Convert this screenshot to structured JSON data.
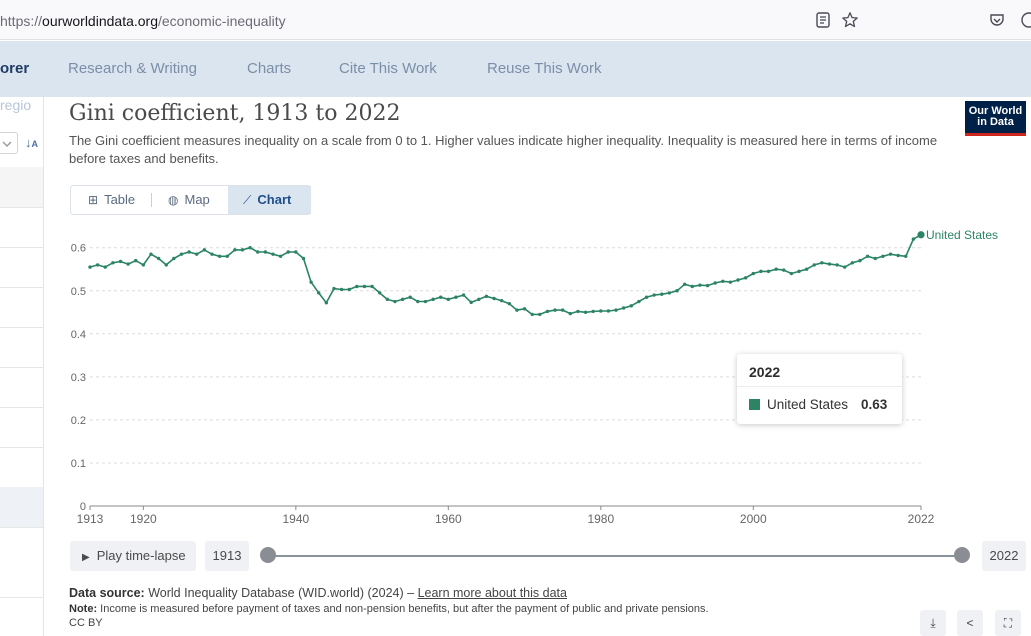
{
  "browser": {
    "url_prefix": "https://",
    "url_domain": "ourworldindata.org",
    "url_path": "/economic-inequality"
  },
  "nav": {
    "cut_left": "orer",
    "items": [
      "Research & Writing",
      "Charts",
      "Cite This Work",
      "Reuse This Work"
    ]
  },
  "left_panel": {
    "search_fragment": "regio"
  },
  "chart_header": {
    "title": "Gini coefficient, 1913 to 2022",
    "subtitle": "The Gini coefficient measures inequality on a scale from 0 to 1. Higher values indicate higher inequality. Inequality is measured here in terms of income before taxes and benefits.",
    "logo_line1": "Our World",
    "logo_line2": "in Data"
  },
  "tabs": [
    {
      "label": "Table",
      "icon": "table-icon",
      "active": false
    },
    {
      "label": "Map",
      "icon": "globe-icon",
      "active": false
    },
    {
      "label": "Chart",
      "icon": "line-chart-icon",
      "active": true
    }
  ],
  "colors": {
    "series": "#2c8465",
    "accent": "#dbe5f0",
    "logo_bg": "#002147",
    "logo_red": "#ce261e"
  },
  "chart_data": {
    "type": "line",
    "title": "Gini coefficient, 1913 to 2022",
    "xlabel": "",
    "ylabel": "",
    "ylim": [
      0,
      0.65
    ],
    "xlim": [
      1913,
      2022
    ],
    "yticks": [
      0,
      0.1,
      0.2,
      0.3,
      0.4,
      0.5,
      0.6
    ],
    "ytick_labels": [
      "0",
      "0.1",
      "0.2",
      "0.3",
      "0.4",
      "0.5",
      "0.6"
    ],
    "xticks": [
      1913,
      1920,
      1940,
      1960,
      1980,
      2000,
      2022
    ],
    "xtick_labels": [
      "1913",
      "1920",
      "1940",
      "1960",
      "1980",
      "2000",
      "2022"
    ],
    "grid": true,
    "series": [
      {
        "name": "United States",
        "x": [
          1913,
          1914,
          1915,
          1916,
          1917,
          1918,
          1919,
          1920,
          1921,
          1922,
          1923,
          1924,
          1925,
          1926,
          1927,
          1928,
          1929,
          1930,
          1931,
          1932,
          1933,
          1934,
          1935,
          1936,
          1937,
          1938,
          1939,
          1940,
          1941,
          1942,
          1943,
          1944,
          1945,
          1946,
          1947,
          1948,
          1949,
          1950,
          1951,
          1952,
          1953,
          1954,
          1955,
          1956,
          1957,
          1958,
          1959,
          1960,
          1961,
          1962,
          1963,
          1964,
          1965,
          1966,
          1967,
          1968,
          1969,
          1970,
          1971,
          1972,
          1973,
          1974,
          1975,
          1976,
          1977,
          1978,
          1979,
          1980,
          1981,
          1982,
          1983,
          1984,
          1985,
          1986,
          1987,
          1988,
          1989,
          1990,
          1991,
          1992,
          1993,
          1994,
          1995,
          1996,
          1997,
          1998,
          1999,
          2000,
          2001,
          2002,
          2003,
          2004,
          2005,
          2006,
          2007,
          2008,
          2009,
          2010,
          2011,
          2012,
          2013,
          2014,
          2015,
          2016,
          2017,
          2018,
          2019,
          2020,
          2021,
          2022
        ],
        "y": [
          0.555,
          0.56,
          0.555,
          0.565,
          0.568,
          0.562,
          0.57,
          0.56,
          0.585,
          0.575,
          0.56,
          0.575,
          0.585,
          0.59,
          0.585,
          0.595,
          0.585,
          0.58,
          0.58,
          0.595,
          0.595,
          0.6,
          0.59,
          0.59,
          0.585,
          0.58,
          0.59,
          0.59,
          0.575,
          0.52,
          0.495,
          0.472,
          0.505,
          0.503,
          0.503,
          0.51,
          0.51,
          0.51,
          0.495,
          0.48,
          0.475,
          0.48,
          0.485,
          0.475,
          0.475,
          0.48,
          0.485,
          0.48,
          0.485,
          0.49,
          0.473,
          0.48,
          0.487,
          0.482,
          0.477,
          0.47,
          0.455,
          0.458,
          0.445,
          0.445,
          0.452,
          0.455,
          0.455,
          0.447,
          0.452,
          0.45,
          0.452,
          0.453,
          0.453,
          0.455,
          0.46,
          0.465,
          0.475,
          0.485,
          0.49,
          0.492,
          0.495,
          0.5,
          0.515,
          0.51,
          0.513,
          0.512,
          0.518,
          0.522,
          0.52,
          0.525,
          0.53,
          0.54,
          0.545,
          0.545,
          0.55,
          0.548,
          0.54,
          0.545,
          0.55,
          0.56,
          0.565,
          0.562,
          0.56,
          0.555,
          0.565,
          0.57,
          0.58,
          0.575,
          0.58,
          0.585,
          0.582,
          0.58,
          0.62,
          0.63
        ],
        "end_label": "United States"
      }
    ]
  },
  "tooltip": {
    "year": "2022",
    "entity": "United States",
    "value": "0.63"
  },
  "timeline": {
    "play_label": "Play time-lapse",
    "start_year": "1913",
    "end_year": "2022"
  },
  "footer": {
    "source_label": "Data source:",
    "source_text": "World Inequality Database (WID.world) (2024) –",
    "learn_more": "Learn more about this data",
    "note_label": "Note:",
    "note_text": "Income is measured before payment of taxes and non-pension benefits, but after the payment of public and private pensions.",
    "license": "CC BY"
  }
}
